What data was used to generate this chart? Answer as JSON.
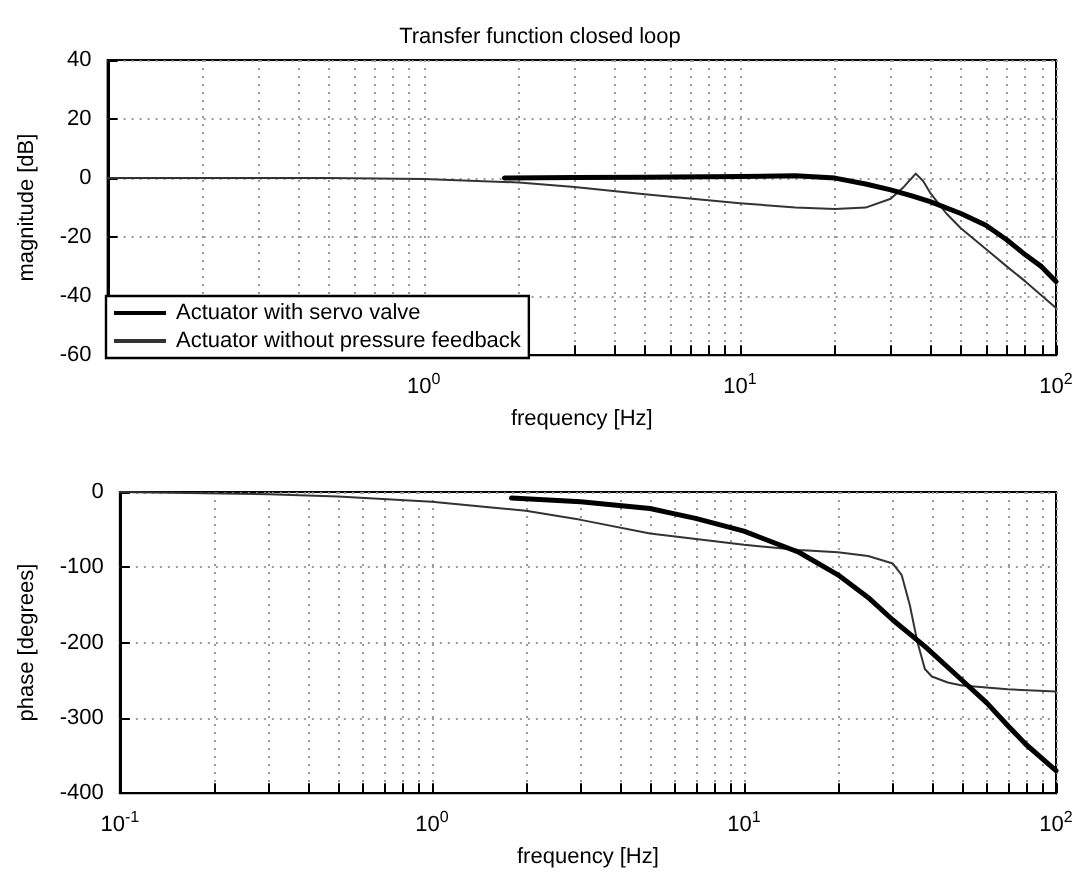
{
  "chart_data": [
    {
      "type": "line",
      "title": "Transfer function closed loop",
      "xlabel": "frequency [Hz]",
      "ylabel": "magnitude [dB]",
      "log": "x",
      "grid": true,
      "legend": "bottom left",
      "marker": "none",
      "line_style": "solid",
      "xlim": [
        0.1,
        100
      ],
      "ylim": [
        -60,
        40
      ],
      "yticks": [
        -60,
        -40,
        -20,
        0,
        20,
        40
      ],
      "xticks": [
        {
          "value": 0.1,
          "label": null
        },
        {
          "value": 0.2,
          "label": null
        },
        {
          "value": 0.3,
          "label": null
        },
        {
          "value": 0.4,
          "label": null
        },
        {
          "value": 0.5,
          "label": null
        },
        {
          "value": 0.6,
          "label": null
        },
        {
          "value": 0.7,
          "label": null
        },
        {
          "value": 0.8,
          "label": null
        },
        {
          "value": 0.9,
          "label": null
        },
        {
          "value": 1,
          "label": "10$^{0}$"
        },
        {
          "value": 2,
          "label": null
        },
        {
          "value": 3,
          "label": null
        },
        {
          "value": 4,
          "label": null
        },
        {
          "value": 5,
          "label": null
        },
        {
          "value": 6,
          "label": null
        },
        {
          "value": 7,
          "label": null
        },
        {
          "value": 8,
          "label": null
        },
        {
          "value": 9,
          "label": null
        },
        {
          "value": 10,
          "label": "10$^{1}$"
        },
        {
          "value": 20,
          "label": null
        },
        {
          "value": 30,
          "label": null
        },
        {
          "value": 40,
          "label": null
        },
        {
          "value": 50,
          "label": null
        },
        {
          "value": 60,
          "label": null
        },
        {
          "value": 70,
          "label": null
        },
        {
          "value": 80,
          "label": null
        },
        {
          "value": 90,
          "label": null
        },
        {
          "value": 100,
          "label": "10$^{2}$"
        }
      ],
      "series": [
        {
          "name": "Actuator with servo valve",
          "color": "#000000",
          "x": [
            1.8,
            3,
            5,
            10,
            15,
            20,
            25,
            30,
            35,
            40,
            50,
            60,
            70,
            80,
            90,
            100
          ],
          "values": [
            0,
            0.2,
            0.3,
            0.5,
            0.8,
            0,
            -2,
            -4,
            -6,
            -8,
            -12,
            -16,
            -21,
            -26,
            -30,
            -35
          ]
        },
        {
          "name": "Actuator without pressure feedback",
          "color": "#333333",
          "x": [
            0.1,
            0.5,
            1,
            2,
            3,
            5,
            10,
            15,
            20,
            25,
            30,
            33,
            36,
            38,
            40,
            45,
            50,
            60,
            70,
            80,
            100
          ],
          "values": [
            0,
            0,
            -0.3,
            -1.5,
            -3,
            -5.5,
            -8.5,
            -10,
            -10.5,
            -10,
            -7,
            -3,
            1.5,
            -1,
            -5,
            -12,
            -17,
            -24,
            -30,
            -35,
            -44
          ]
        }
      ]
    },
    {
      "type": "line",
      "xlabel": "frequency [Hz]",
      "ylabel": "phase [degrees]",
      "log": "x",
      "grid": true,
      "marker": "none",
      "line_style": "solid",
      "xlim": [
        0.1,
        100
      ],
      "ylim": [
        -400,
        0
      ],
      "yticks": [
        -400,
        -300,
        -200,
        -100,
        0
      ],
      "xticks": [
        {
          "value": 0.1,
          "label": "10$^{-1}$"
        },
        {
          "value": 0.2,
          "label": null
        },
        {
          "value": 0.3,
          "label": null
        },
        {
          "value": 0.4,
          "label": null
        },
        {
          "value": 0.5,
          "label": null
        },
        {
          "value": 0.6,
          "label": null
        },
        {
          "value": 0.7,
          "label": null
        },
        {
          "value": 0.8,
          "label": null
        },
        {
          "value": 0.9,
          "label": null
        },
        {
          "value": 1,
          "label": "10$^{0}$"
        },
        {
          "value": 2,
          "label": null
        },
        {
          "value": 3,
          "label": null
        },
        {
          "value": 4,
          "label": null
        },
        {
          "value": 5,
          "label": null
        },
        {
          "value": 6,
          "label": null
        },
        {
          "value": 7,
          "label": null
        },
        {
          "value": 8,
          "label": null
        },
        {
          "value": 9,
          "label": null
        },
        {
          "value": 10,
          "label": "10$^{1}$"
        },
        {
          "value": 20,
          "label": null
        },
        {
          "value": 30,
          "label": null
        },
        {
          "value": 40,
          "label": null
        },
        {
          "value": 50,
          "label": null
        },
        {
          "value": 60,
          "label": null
        },
        {
          "value": 70,
          "label": null
        },
        {
          "value": 80,
          "label": null
        },
        {
          "value": 90,
          "label": null
        },
        {
          "value": 100,
          "label": "10$^{2}$"
        }
      ],
      "series": [
        {
          "color": "#000000",
          "x": [
            1.8,
            3,
            5,
            7,
            10,
            15,
            20,
            25,
            30,
            38,
            50,
            60,
            70,
            80,
            100
          ],
          "values": [
            -8,
            -13,
            -22,
            -35,
            -52,
            -80,
            -110,
            -140,
            -170,
            -205,
            -250,
            -280,
            -310,
            -335,
            -370
          ]
        },
        {
          "color": "#333333",
          "x": [
            0.1,
            0.3,
            0.5,
            1,
            2,
            3,
            5,
            10,
            15,
            20,
            25,
            30,
            32,
            34,
            36,
            38,
            40,
            45,
            50,
            70,
            100
          ],
          "values": [
            0,
            -3,
            -6,
            -13,
            -25,
            -37,
            -55,
            -70,
            -77,
            -80,
            -85,
            -95,
            -110,
            -150,
            -200,
            -235,
            -245,
            -253,
            -257,
            -262,
            -265
          ]
        }
      ]
    }
  ]
}
